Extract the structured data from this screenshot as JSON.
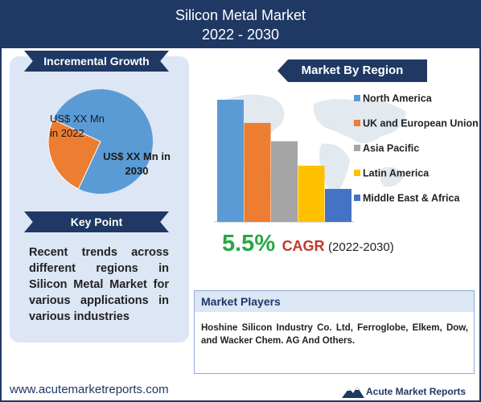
{
  "header": {
    "title": "Silicon Metal Market",
    "period": "2022 - 2030"
  },
  "incremental_growth": {
    "heading": "Incremental Growth",
    "label_2022": "US$ XX Mn in 2022",
    "label_2030": "US$ XX Mn in 2030",
    "colors": {
      "2022": "#ed7d31",
      "2030": "#5b9bd5"
    }
  },
  "key_point": {
    "heading": "Key Point",
    "text": "Recent trends across different regions in Silicon Metal Market for various applications in various industries"
  },
  "market_by_region": {
    "heading": "Market By Region"
  },
  "chart_data": [
    {
      "type": "pie",
      "categories": [
        "2022",
        "2030"
      ],
      "values": [
        25,
        75
      ],
      "labels": [
        "US$ XX Mn in 2022",
        "US$ XX Mn in 2030"
      ],
      "colors": [
        "#ed7d31",
        "#5b9bd5"
      ]
    },
    {
      "type": "bar",
      "categories": [
        "North America",
        "UK and European Union",
        "Asia Pacific",
        "Latin America",
        "Middle East & Africa"
      ],
      "values": [
        100,
        81,
        66,
        46,
        27
      ],
      "colors": [
        "#5b9bd5",
        "#ed7d31",
        "#a5a5a5",
        "#ffc000",
        "#4472c4"
      ],
      "legend_position": "right"
    }
  ],
  "cagr": {
    "value": "5.5%",
    "label": "CAGR",
    "period": "(2022-2030)"
  },
  "market_players": {
    "heading": "Market Players",
    "text": "Hoshine Silicon Industry Co. Ltd, Ferroglobe, Elkem, Dow, and Wacker Chem. AG And Others."
  },
  "footer": {
    "url": "www.acutemarketreports.com",
    "logo_text": "Acute Market Reports"
  }
}
